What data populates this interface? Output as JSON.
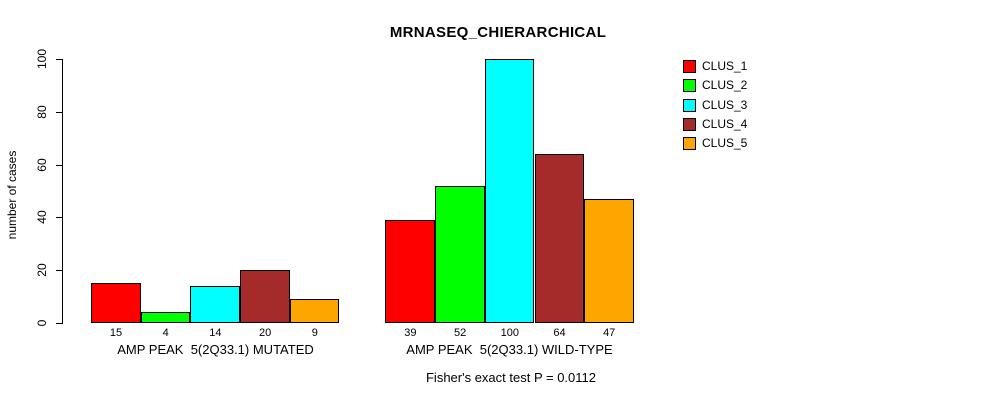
{
  "title": "MRNASEQ_CHIERARCHICAL",
  "footer": "Fisher's exact test P = 0.0112",
  "chart_data": {
    "type": "bar",
    "title": "MRNASEQ_CHIERARCHICAL",
    "xlabel": "",
    "ylabel": "number of cases",
    "ylim": [
      0,
      100
    ],
    "yticks": [
      0,
      20,
      40,
      60,
      80,
      100
    ],
    "grid": false,
    "legend_position": "right-outside",
    "series_names": [
      "CLUS_1",
      "CLUS_2",
      "CLUS_3",
      "CLUS_4",
      "CLUS_5"
    ],
    "series_colors": [
      "#ff0000",
      "#00ff00",
      "#00ffff",
      "#a52a2a",
      "#ffa500"
    ],
    "bar_border_color": "#000000",
    "groups": [
      {
        "label": "AMP PEAK  5(2Q33.1) MUTATED",
        "values": [
          15,
          4,
          14,
          20,
          9
        ]
      },
      {
        "label": "AMP PEAK  5(2Q33.1) WILD-TYPE",
        "values": [
          39,
          52,
          100,
          64,
          47
        ]
      }
    ],
    "annotation": "Fisher's exact test P = 0.0112"
  }
}
